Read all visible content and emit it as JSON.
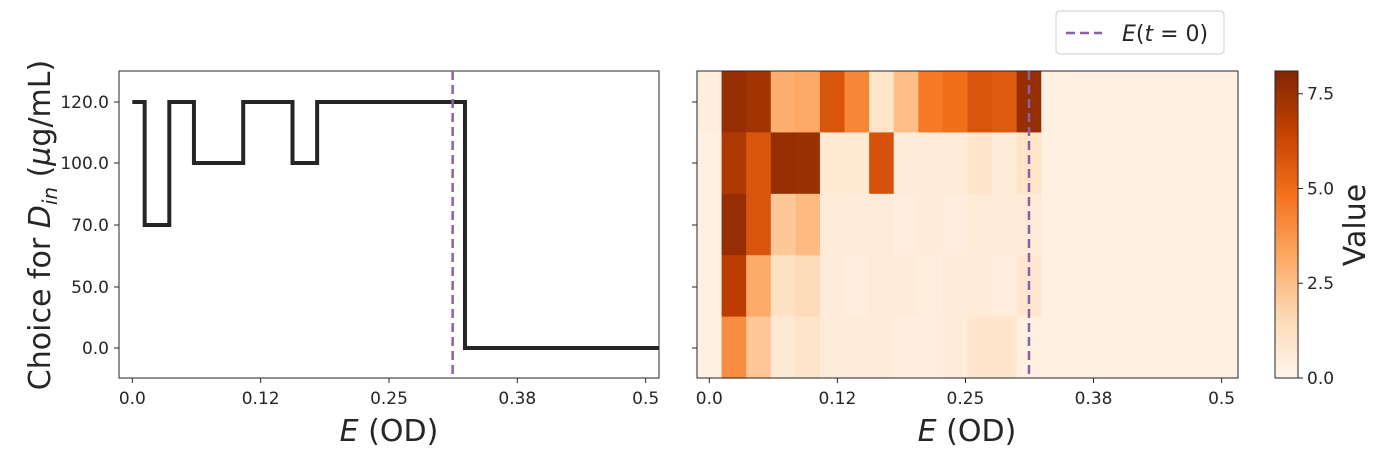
{
  "chart_data": [
    {
      "type": "line",
      "panel": "left",
      "title": "",
      "xlabel": "E (OD)",
      "ylabel": "Choice for D_in (µg/mL)",
      "x_ticks": [
        "0.0",
        "0.12",
        "0.25",
        "0.38",
        "0.5"
      ],
      "y_ticks": [
        "0.0",
        "50.0",
        "70.0",
        "100.0",
        "120.0"
      ],
      "y_categories": [
        "0.0",
        "50.0",
        "70.0",
        "100.0",
        "120.0"
      ],
      "xlim": [
        -0.013,
        0.513
      ],
      "step_x": [
        0.0,
        0.012,
        0.036,
        0.06,
        0.108,
        0.156,
        0.18,
        0.324,
        0.516
      ],
      "step_y_category": [
        4,
        2,
        4,
        3,
        4,
        3,
        4,
        0
      ],
      "vline": {
        "x": 0.312,
        "label": "E(t = 0)",
        "color": "#8c61a4"
      },
      "grid": false,
      "legend_position": "top-right"
    },
    {
      "type": "heatmap",
      "panel": "right",
      "title": "",
      "xlabel": "E (OD)",
      "x_ticks": [
        "0.0",
        "0.12",
        "0.25",
        "0.38",
        "0.5"
      ],
      "y_categories": [
        "0.0",
        "50.0",
        "70.0",
        "100.0",
        "120.0"
      ],
      "x_bin_width": 0.024,
      "x_start": -0.012,
      "colorbar": {
        "label": "Value",
        "ticks": [
          "0.0",
          "2.5",
          "5.0",
          "7.5"
        ],
        "min": 0,
        "max": 8.1
      },
      "rows": [
        {
          "category": "120.0",
          "values": [
            0.4,
            7.6,
            7.3,
            3.0,
            3.2,
            5.8,
            4.2,
            1.0,
            2.5,
            4.6,
            4.9,
            5.8,
            5.6,
            7.6,
            0.3,
            0.3,
            0.3,
            0.3,
            0.3,
            0.3,
            0.3,
            0.3
          ]
        },
        {
          "category": "100.0",
          "values": [
            0.3,
            7.0,
            5.8,
            7.6,
            7.5,
            0.7,
            0.7,
            5.9,
            0.5,
            0.6,
            0.6,
            0.9,
            0.6,
            1.0,
            0.3,
            0.3,
            0.3,
            0.3,
            0.3,
            0.3,
            0.3,
            0.3
          ]
        },
        {
          "category": "70.0",
          "values": [
            0.3,
            7.6,
            5.8,
            2.2,
            2.6,
            0.6,
            0.5,
            0.6,
            0.4,
            0.5,
            0.4,
            0.6,
            0.5,
            0.6,
            0.3,
            0.3,
            0.3,
            0.3,
            0.3,
            0.3,
            0.3,
            0.3
          ]
        },
        {
          "category": "50.0",
          "values": [
            0.3,
            6.7,
            3.1,
            1.1,
            1.5,
            0.5,
            0.4,
            0.6,
            0.5,
            0.4,
            0.6,
            0.6,
            0.4,
            0.8,
            0.3,
            0.3,
            0.3,
            0.3,
            0.3,
            0.3,
            0.3,
            0.3
          ]
        },
        {
          "category": "0.0",
          "values": [
            0.3,
            4.0,
            2.2,
            0.7,
            1.0,
            0.5,
            0.5,
            0.5,
            0.4,
            0.4,
            0.5,
            0.9,
            0.9,
            0.3,
            0.3,
            0.3,
            0.3,
            0.3,
            0.3,
            0.3,
            0.3,
            0.3
          ]
        }
      ],
      "vline": {
        "x": 0.312,
        "color": "#8c61a4"
      }
    }
  ]
}
